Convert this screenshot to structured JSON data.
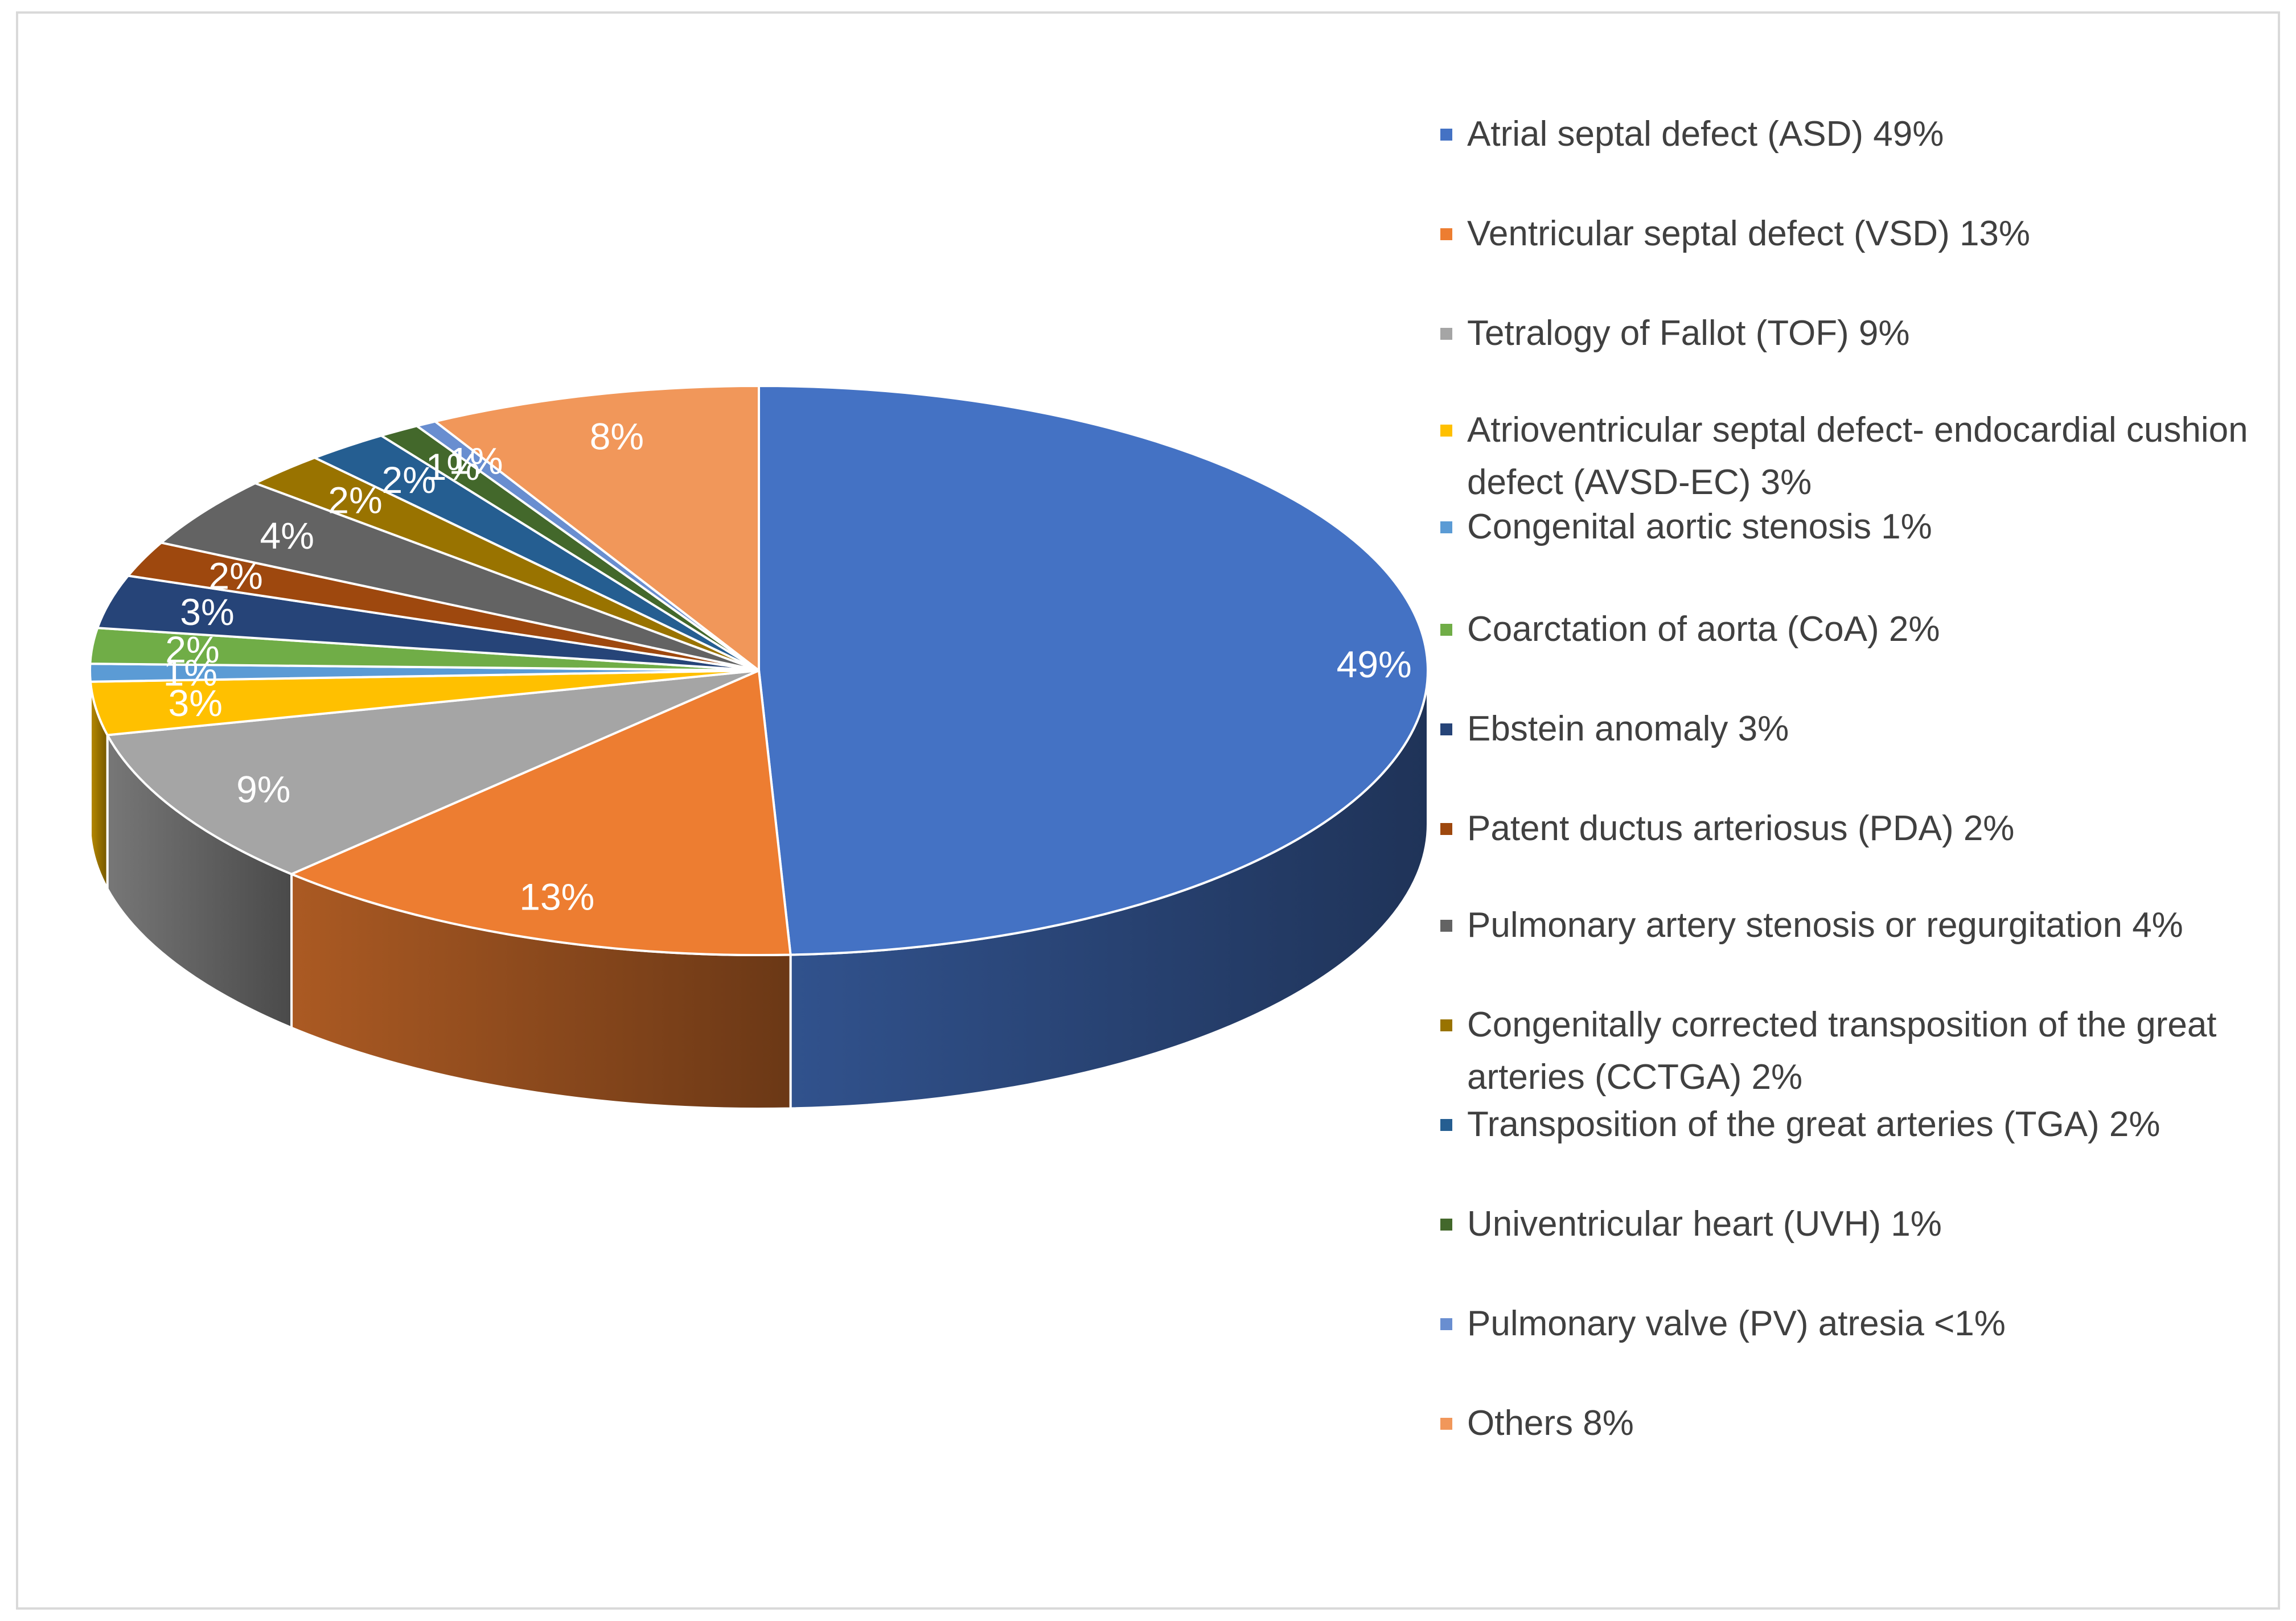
{
  "chart_data": {
    "type": "pie",
    "style": "3d",
    "title": "",
    "slices": [
      {
        "label": "Atrial septal defect (ASD) 49%",
        "value": 49,
        "data_label": "49%",
        "color": "#4472C4"
      },
      {
        "label": "Ventricular septal defect (VSD) 13%",
        "value": 13,
        "data_label": "13%",
        "color": "#ED7D31"
      },
      {
        "label": "Tetralogy of Fallot (TOF) 9%",
        "value": 9,
        "data_label": "9%",
        "color": "#A5A5A5"
      },
      {
        "label": "Atrioventricular septal defect- endocardial cushion defect (AVSD-EC) 3%",
        "value": 3,
        "data_label": "3%",
        "color": "#FFC000"
      },
      {
        "label": "Congenital aortic stenosis  1%",
        "value": 1,
        "data_label": "1%",
        "color": "#5B9BD5"
      },
      {
        "label": "Coarctation of aorta (CoA) 2%",
        "value": 2,
        "data_label": "2%",
        "color": "#70AD47"
      },
      {
        "label": "Ebstein anomaly 3%",
        "value": 3,
        "data_label": "3%",
        "color": "#264478"
      },
      {
        "label": "Patent ductus arteriosus (PDA) 2%",
        "value": 2,
        "data_label": "2%",
        "color": "#9E480E"
      },
      {
        "label": "Pulmonary artery stenosis or regurgitation 4%",
        "value": 4,
        "data_label": "4%",
        "color": "#636363"
      },
      {
        "label": "Congenitally corrected transposition of the great arteries  (CCTGA) 2%",
        "value": 2,
        "data_label": "2%",
        "color": "#997300"
      },
      {
        "label": "Transposition of the great arteries (TGA) 2%",
        "value": 2,
        "data_label": "2%",
        "color": "#255E91"
      },
      {
        "label": "Univentricular heart (UVH) 1%",
        "value": 1,
        "data_label": "1%",
        "color": "#43682B"
      },
      {
        "label": "Pulmonary valve (PV) atresia <1%",
        "value": 0.5,
        "data_label": "1%",
        "color": "#698ED0"
      },
      {
        "label": "Others 8%",
        "value": 8,
        "data_label": "8%",
        "color": "#F1975A"
      }
    ],
    "legend_position": "right"
  }
}
